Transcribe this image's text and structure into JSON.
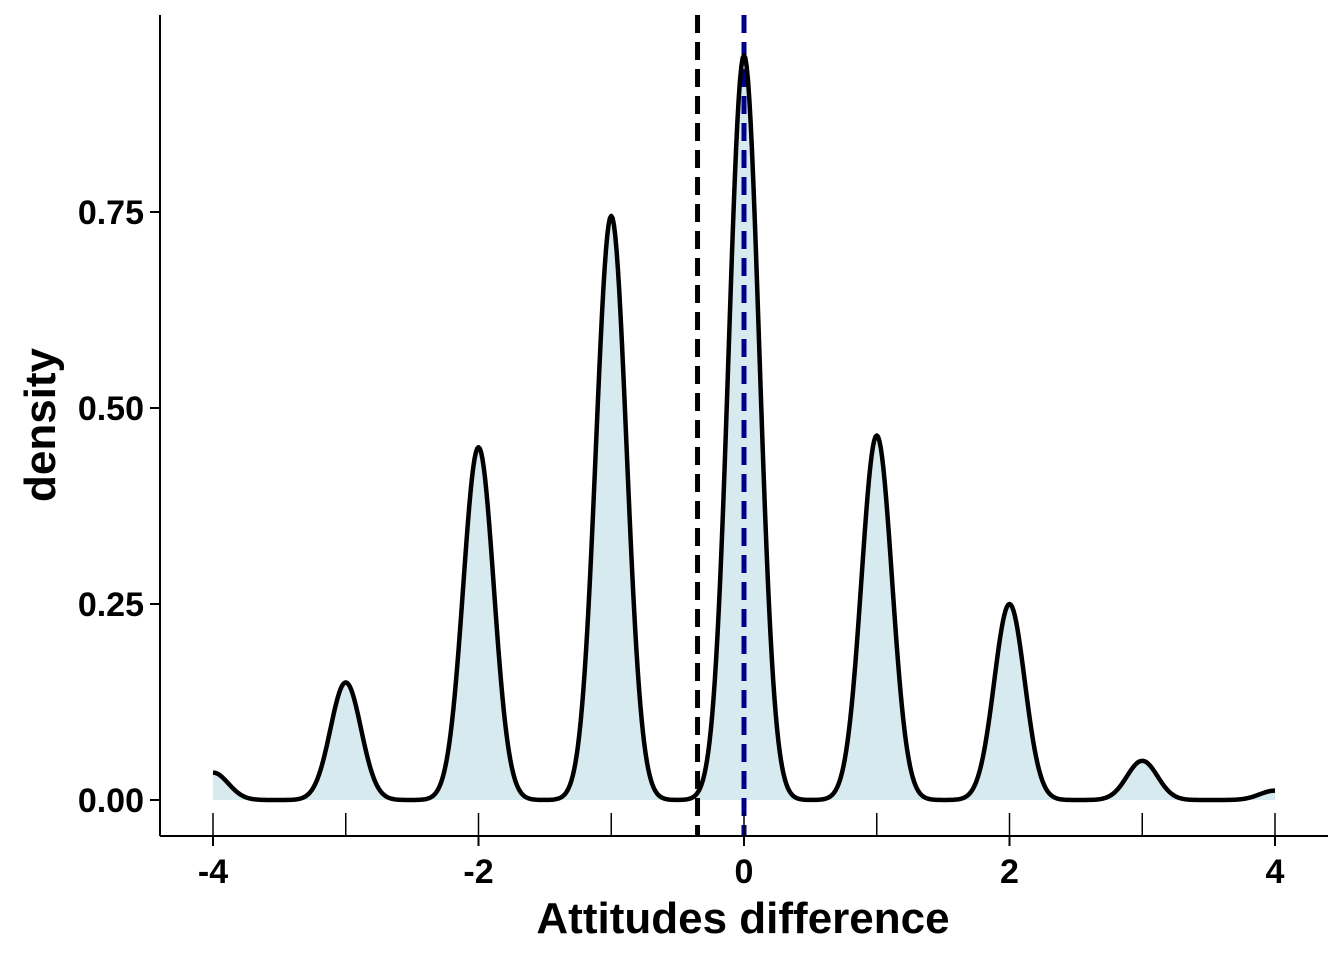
{
  "chart_data": {
    "type": "area",
    "title": "",
    "xlabel": "Attitudes difference",
    "ylabel": "density",
    "xlim": [
      -4.2,
      4.2
    ],
    "ylim": [
      -0.045,
      1.05
    ],
    "x_ticks": [
      -4,
      -2,
      0,
      2,
      4
    ],
    "x_minor_ticks": [
      -3,
      -1,
      1,
      3
    ],
    "y_ticks": [
      0,
      0.25,
      0.5,
      0.75
    ],
    "x_tick_labels": [
      "-4",
      "-2",
      "0",
      "2",
      "4"
    ],
    "y_tick_labels": [
      "0.00",
      "0.25",
      "0.50",
      "0.75"
    ],
    "grid": false,
    "density_peaks": [
      {
        "x": -3,
        "density": 0.15
      },
      {
        "x": -2,
        "density": 0.45
      },
      {
        "x": -1,
        "density": 0.745
      },
      {
        "x": 0,
        "density": 0.95
      },
      {
        "x": 1,
        "density": 0.465
      },
      {
        "x": 2,
        "density": 0.25
      },
      {
        "x": 3,
        "density": 0.05
      }
    ],
    "density_endpoints": [
      {
        "x": -4,
        "density": 0.035
      },
      {
        "x": 4,
        "density": 0.012
      }
    ],
    "density_x_range": [
      -4,
      4
    ],
    "reference_lines": [
      {
        "x": -0.35,
        "color": "#000000",
        "style": "dashed"
      },
      {
        "x": 0,
        "color": "#00008B",
        "style": "dashed"
      }
    ],
    "fill_color": "#D6EAF0",
    "line_color": "#000000"
  }
}
